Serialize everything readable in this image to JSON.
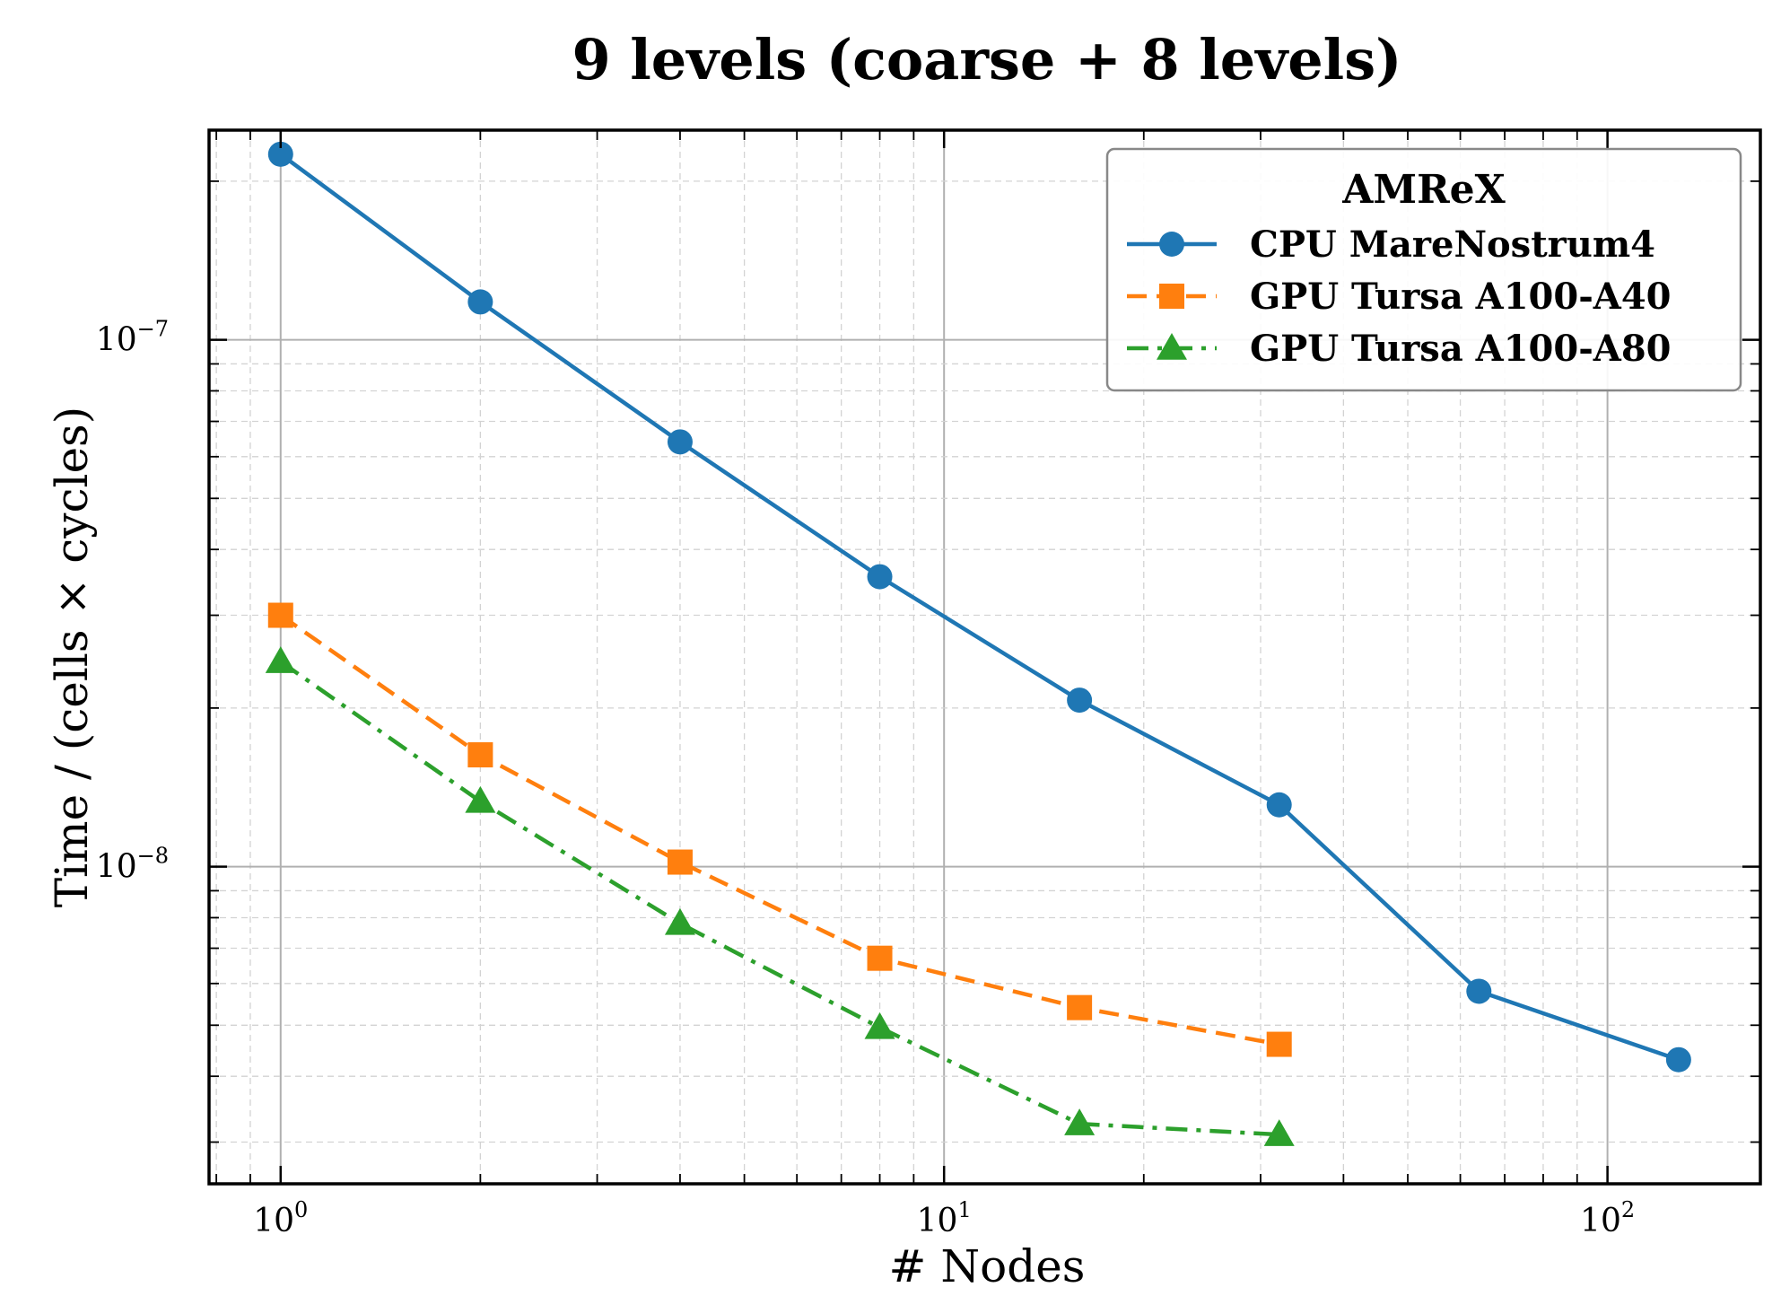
{
  "chart_data": {
    "type": "line",
    "title": "9 levels (coarse + 8 levels)",
    "xlabel": "# Nodes",
    "ylabel": "Time / (cells × cycles)",
    "xscale": "log",
    "yscale": "log",
    "xlim": [
      0.78,
      170
    ],
    "ylim": [
      2.5e-09,
      2.5e-07
    ],
    "x_ticks": [
      {
        "base": "10",
        "exp": "0",
        "value": 1
      },
      {
        "base": "10",
        "exp": "1",
        "value": 10
      },
      {
        "base": "10",
        "exp": "2",
        "value": 100
      }
    ],
    "y_ticks": [
      {
        "base": "10",
        "exp": "−8",
        "value": 1e-08
      },
      {
        "base": "10",
        "exp": "−7",
        "value": 1e-07
      }
    ],
    "grid": true,
    "legend": {
      "title": "AMReX",
      "position": "top-right"
    },
    "series": [
      {
        "name": "CPU MareNostrum4",
        "color": "#1f77b4",
        "marker": "circle",
        "linestyle": "solid",
        "x": [
          1,
          2,
          4,
          8,
          16,
          32,
          64,
          128
        ],
        "y": [
          2.25e-07,
          1.18e-07,
          6.4e-08,
          3.55e-08,
          2.07e-08,
          1.31e-08,
          5.8e-09,
          4.3e-09
        ]
      },
      {
        "name": "GPU Tursa A100-A40",
        "color": "#ff7f0e",
        "marker": "square",
        "linestyle": "dashed",
        "x": [
          1,
          2,
          4,
          8,
          16,
          32
        ],
        "y": [
          3e-08,
          1.63e-08,
          1.02e-08,
          6.7e-09,
          5.4e-09,
          4.6e-09
        ]
      },
      {
        "name": "GPU Tursa A100-A80",
        "color": "#2ca02c",
        "marker": "triangle",
        "linestyle": "dashdot",
        "x": [
          1,
          2,
          4,
          8,
          16,
          32
        ],
        "y": [
          2.45e-08,
          1.33e-08,
          7.8e-09,
          4.95e-09,
          3.25e-09,
          3.1e-09
        ]
      }
    ]
  }
}
